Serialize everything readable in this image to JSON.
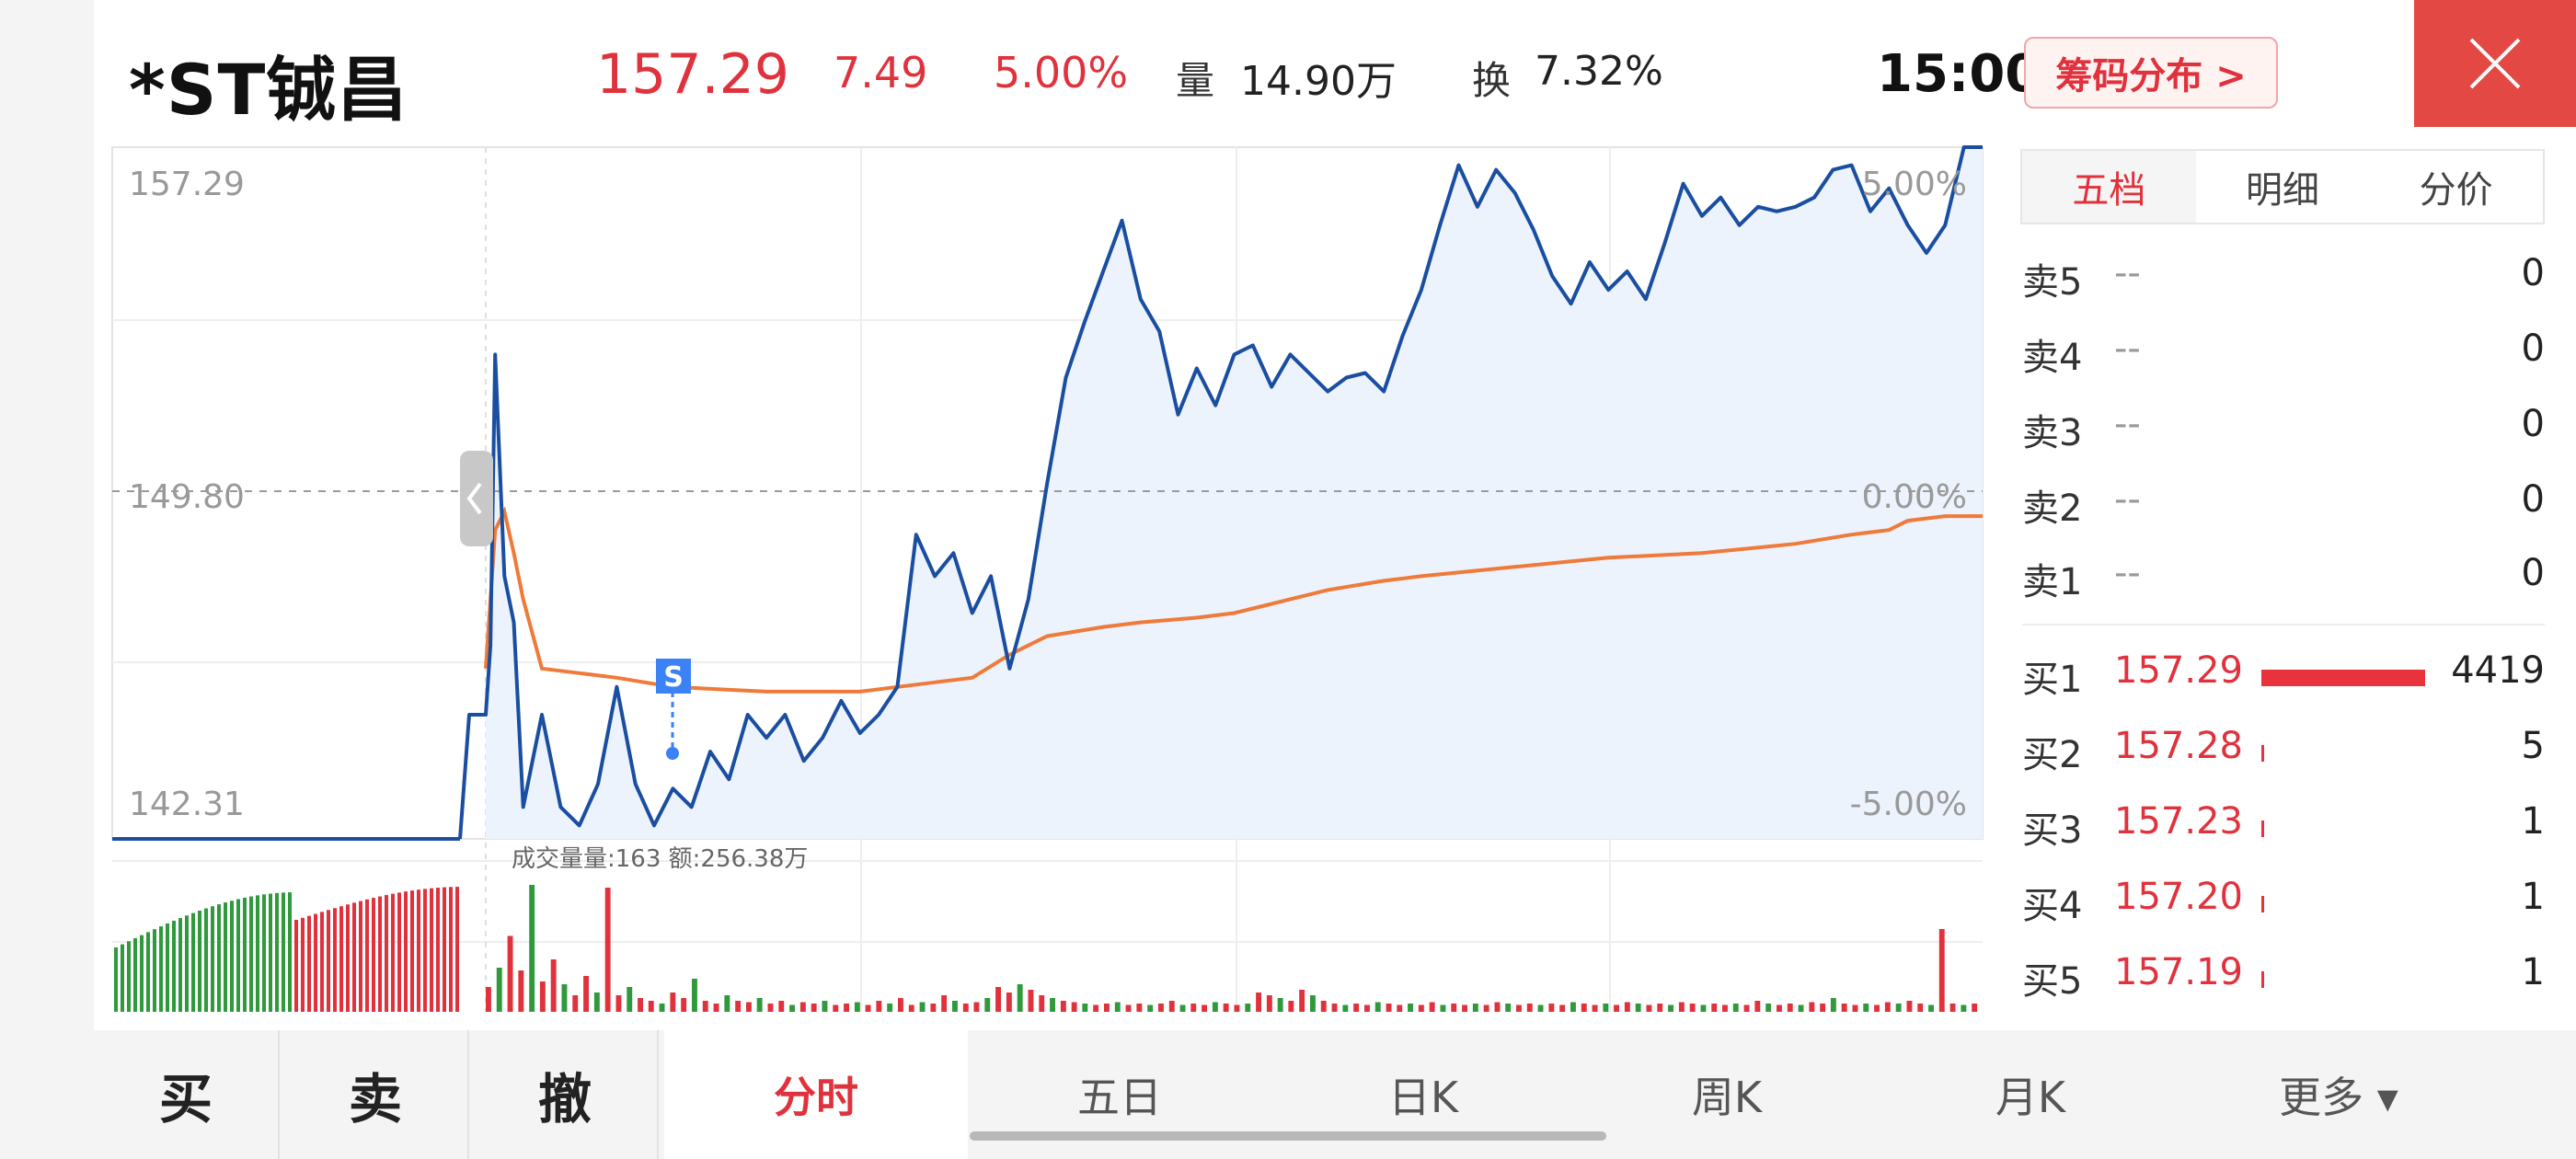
{
  "header": {
    "stock_name": "*ST铖昌",
    "price": "157.29",
    "change": "7.49",
    "change_pct": "5.00%",
    "volume_label": "量",
    "volume": "14.90万",
    "turnover_label": "换",
    "turnover": "7.32%",
    "time": "15:00",
    "chip_button": "筹码分布 >"
  },
  "chart_labels": {
    "y_top": "157.29",
    "y_mid": "149.80",
    "y_bottom": "142.31",
    "pct_top": "5.00%",
    "pct_mid": "0.00%",
    "pct_bottom": "-5.00%",
    "volume_info": "成交量量:163 额:256.38万",
    "marker": "S"
  },
  "chart_data": {
    "type": "line",
    "ylim": [
      142.31,
      157.29
    ],
    "prev_close": 149.8,
    "series": [
      {
        "name": "",
        "color": "#1a4ea0",
        "points": [
          [
            0,
            145.0
          ],
          [
            0.5,
            146.5
          ],
          [
            1,
            152.8
          ],
          [
            2,
            148.0
          ],
          [
            3,
            147.0
          ],
          [
            4,
            143.0
          ],
          [
            5,
            144.0
          ],
          [
            6,
            145.0
          ],
          [
            8,
            143.0
          ],
          [
            10,
            142.6
          ],
          [
            12,
            143.5
          ],
          [
            14,
            145.6
          ],
          [
            16,
            143.5
          ],
          [
            18,
            142.6
          ],
          [
            20,
            143.4
          ],
          [
            22,
            143.0
          ],
          [
            24,
            144.2
          ],
          [
            26,
            143.6
          ],
          [
            28,
            145.0
          ],
          [
            30,
            144.5
          ],
          [
            32,
            145.0
          ],
          [
            34,
            144.0
          ],
          [
            36,
            144.5
          ],
          [
            38,
            145.3
          ],
          [
            40,
            144.6
          ],
          [
            42,
            145.0
          ],
          [
            44,
            145.6
          ],
          [
            46,
            148.9
          ],
          [
            48,
            148.0
          ],
          [
            50,
            148.5
          ],
          [
            52,
            147.2
          ],
          [
            54,
            148.0
          ],
          [
            56,
            146.0
          ],
          [
            58,
            147.5
          ],
          [
            60,
            150.0
          ],
          [
            62,
            152.3
          ],
          [
            64,
            153.5
          ],
          [
            66,
            154.6
          ],
          [
            68,
            155.7
          ],
          [
            70,
            154.0
          ],
          [
            72,
            153.3
          ],
          [
            74,
            151.5
          ],
          [
            76,
            152.5
          ],
          [
            78,
            151.7
          ],
          [
            80,
            152.8
          ],
          [
            82,
            153.0
          ],
          [
            84,
            152.1
          ],
          [
            86,
            152.8
          ],
          [
            88,
            152.4
          ],
          [
            90,
            152.0
          ],
          [
            92,
            152.3
          ],
          [
            94,
            152.4
          ],
          [
            96,
            152.0
          ],
          [
            98,
            153.2
          ],
          [
            100,
            154.2
          ],
          [
            102,
            155.6
          ],
          [
            104,
            156.9
          ],
          [
            106,
            156.0
          ],
          [
            108,
            156.8
          ],
          [
            110,
            156.3
          ],
          [
            112,
            155.5
          ],
          [
            114,
            154.5
          ],
          [
            116,
            153.9
          ],
          [
            118,
            154.8
          ],
          [
            120,
            154.2
          ],
          [
            122,
            154.6
          ],
          [
            124,
            154.0
          ],
          [
            126,
            155.2
          ],
          [
            128,
            156.5
          ],
          [
            130,
            155.8
          ],
          [
            132,
            156.2
          ],
          [
            134,
            155.6
          ],
          [
            136,
            156.0
          ],
          [
            138,
            155.9
          ],
          [
            140,
            156.0
          ],
          [
            142,
            156.2
          ],
          [
            144,
            156.8
          ],
          [
            146,
            156.9
          ],
          [
            148,
            155.9
          ],
          [
            150,
            156.4
          ],
          [
            152,
            155.6
          ],
          [
            154,
            155.0
          ],
          [
            156,
            155.6
          ],
          [
            158,
            157.29
          ],
          [
            160,
            157.29
          ]
        ]
      },
      {
        "name": "",
        "color": "#ef7a3a",
        "points": [
          [
            0,
            146.0
          ],
          [
            1,
            149.0
          ],
          [
            2,
            149.4
          ],
          [
            3,
            148.5
          ],
          [
            4,
            147.5
          ],
          [
            6,
            146.0
          ],
          [
            10,
            145.9
          ],
          [
            14,
            145.8
          ],
          [
            20,
            145.6
          ],
          [
            30,
            145.5
          ],
          [
            40,
            145.5
          ],
          [
            44,
            145.6
          ],
          [
            48,
            145.7
          ],
          [
            52,
            145.8
          ],
          [
            56,
            146.3
          ],
          [
            60,
            146.7
          ],
          [
            66,
            146.9
          ],
          [
            70,
            147.0
          ],
          [
            76,
            147.1
          ],
          [
            80,
            147.2
          ],
          [
            84,
            147.4
          ],
          [
            90,
            147.7
          ],
          [
            96,
            147.9
          ],
          [
            100,
            148.0
          ],
          [
            110,
            148.2
          ],
          [
            120,
            148.4
          ],
          [
            130,
            148.5
          ],
          [
            140,
            148.7
          ],
          [
            146,
            148.9
          ],
          [
            150,
            149.0
          ],
          [
            152,
            149.2
          ],
          [
            156,
            149.3
          ],
          [
            160,
            149.3
          ]
        ]
      }
    ],
    "volume_bars": [
      0.18,
      0.32,
      0.55,
      0.3,
      0.92,
      0.22,
      0.38,
      0.2,
      0.12,
      0.26,
      0.14,
      0.9,
      0.12,
      0.18,
      0.1,
      0.08,
      0.06,
      0.14,
      0.1,
      0.24,
      0.08,
      0.06,
      0.12,
      0.08,
      0.07,
      0.1,
      0.06,
      0.08,
      0.05,
      0.07,
      0.06,
      0.08,
      0.05,
      0.06,
      0.07,
      0.05,
      0.08,
      0.06,
      0.1,
      0.05,
      0.07,
      0.06,
      0.12,
      0.08,
      0.06,
      0.07,
      0.1,
      0.18,
      0.14,
      0.2,
      0.16,
      0.12,
      0.1,
      0.08,
      0.07,
      0.06,
      0.05,
      0.06,
      0.07,
      0.05,
      0.06,
      0.05,
      0.06,
      0.08,
      0.05,
      0.06,
      0.05,
      0.07,
      0.06,
      0.05,
      0.06,
      0.14,
      0.12,
      0.1,
      0.08,
      0.16,
      0.12,
      0.08,
      0.06,
      0.05,
      0.06,
      0.05,
      0.07,
      0.06,
      0.05,
      0.06,
      0.05,
      0.07,
      0.05,
      0.06,
      0.05,
      0.06,
      0.05,
      0.07,
      0.06,
      0.05,
      0.06,
      0.05,
      0.06,
      0.05,
      0.07,
      0.06,
      0.05,
      0.06,
      0.05,
      0.07,
      0.06,
      0.05,
      0.06,
      0.05,
      0.07,
      0.06,
      0.05,
      0.06,
      0.05,
      0.06,
      0.05,
      0.08,
      0.06,
      0.05,
      0.06,
      0.05,
      0.07,
      0.06,
      0.1,
      0.06,
      0.05,
      0.06,
      0.05,
      0.07,
      0.06,
      0.08,
      0.06,
      0.05,
      0.6,
      0.06,
      0.05,
      0.06
    ]
  },
  "order_book": {
    "tabs": [
      "五档",
      "明细",
      "分价"
    ],
    "asks": [
      {
        "label": "卖5",
        "price": "--",
        "count": "0"
      },
      {
        "label": "卖4",
        "price": "--",
        "count": "0"
      },
      {
        "label": "卖3",
        "price": "--",
        "count": "0"
      },
      {
        "label": "卖2",
        "price": "--",
        "count": "0"
      },
      {
        "label": "卖1",
        "price": "--",
        "count": "0"
      }
    ],
    "bids": [
      {
        "label": "买1",
        "price": "157.29",
        "count": "4419",
        "bar": 1.0
      },
      {
        "label": "买2",
        "price": "157.28",
        "count": "5",
        "bar": 0.02
      },
      {
        "label": "买3",
        "price": "157.23",
        "count": "1",
        "bar": 0.02
      },
      {
        "label": "买4",
        "price": "157.20",
        "count": "1",
        "bar": 0.02
      },
      {
        "label": "买5",
        "price": "157.19",
        "count": "1",
        "bar": 0.02
      }
    ]
  },
  "bottom_bar": {
    "buy": "买",
    "sell": "卖",
    "cancel": "撤",
    "tabs": [
      "分时",
      "五日",
      "日K",
      "周K",
      "月K",
      "更多 ▾"
    ]
  },
  "colors": {
    "up": "#e0323c",
    "down": "#2e9a3c",
    "price_line": "#1a4ea0",
    "avg_line": "#ef7a3a",
    "accent": "#e44845"
  }
}
